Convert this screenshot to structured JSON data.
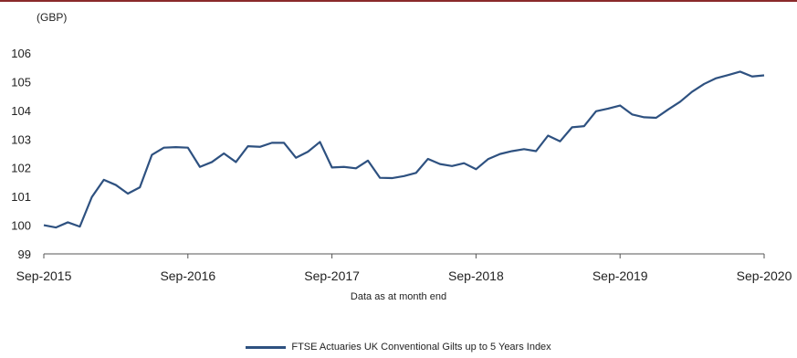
{
  "unit_label": "(GBP)",
  "note": "Data as at month end",
  "legend": {
    "label": "FTSE Actuaries UK Conventional Gilts up to 5 Years Index"
  },
  "colors": {
    "line": "#2e5180",
    "top_rule": "#8a2a2b"
  },
  "chart_data": {
    "type": "line",
    "ylabel": "(GBP)",
    "xlabel": "Data as at month end",
    "ylim": [
      99,
      106
    ],
    "yticks": [
      99,
      100,
      101,
      102,
      103,
      104,
      105,
      106
    ],
    "xticks": [
      "Sep-2015",
      "Sep-2016",
      "Sep-2017",
      "Sep-2018",
      "Sep-2019",
      "Sep-2020"
    ],
    "grid": false,
    "legend_position": "bottom",
    "x": [
      "Sep-2015",
      "Oct-2015",
      "Nov-2015",
      "Dec-2015",
      "Jan-2016",
      "Feb-2016",
      "Mar-2016",
      "Apr-2016",
      "May-2016",
      "Jun-2016",
      "Jul-2016",
      "Aug-2016",
      "Sep-2016",
      "Oct-2016",
      "Nov-2016",
      "Dec-2016",
      "Jan-2017",
      "Feb-2017",
      "Mar-2017",
      "Apr-2017",
      "May-2017",
      "Jun-2017",
      "Jul-2017",
      "Aug-2017",
      "Sep-2017",
      "Oct-2017",
      "Nov-2017",
      "Dec-2017",
      "Jan-2018",
      "Feb-2018",
      "Mar-2018",
      "Apr-2018",
      "May-2018",
      "Jun-2018",
      "Jul-2018",
      "Aug-2018",
      "Sep-2018",
      "Oct-2018",
      "Nov-2018",
      "Dec-2018",
      "Jan-2019",
      "Feb-2019",
      "Mar-2019",
      "Apr-2019",
      "May-2019",
      "Jun-2019",
      "Jul-2019",
      "Aug-2019",
      "Sep-2019",
      "Oct-2019",
      "Nov-2019",
      "Dec-2019",
      "Jan-2020",
      "Feb-2020",
      "Mar-2020",
      "Apr-2020",
      "May-2020",
      "Jun-2020",
      "Jul-2020",
      "Aug-2020",
      "Sep-2020"
    ],
    "series": [
      {
        "name": "FTSE Actuaries UK Conventional Gilts up to 5 Years Index",
        "values": [
          100.0,
          99.92,
          100.1,
          99.95,
          100.98,
          101.58,
          101.4,
          101.1,
          101.32,
          102.45,
          102.7,
          102.72,
          102.7,
          102.03,
          102.2,
          102.5,
          102.2,
          102.75,
          102.73,
          102.87,
          102.87,
          102.35,
          102.56,
          102.9,
          102.01,
          102.03,
          101.98,
          102.25,
          101.65,
          101.64,
          101.71,
          101.82,
          102.31,
          102.13,
          102.06,
          102.16,
          101.95,
          102.3,
          102.48,
          102.58,
          102.65,
          102.58,
          103.12,
          102.92,
          103.41,
          103.45,
          103.97,
          104.06,
          104.17,
          103.86,
          103.76,
          103.74,
          104.03,
          104.3,
          104.65,
          104.92,
          105.12,
          105.23,
          105.35,
          105.18,
          105.22
        ]
      }
    ]
  }
}
